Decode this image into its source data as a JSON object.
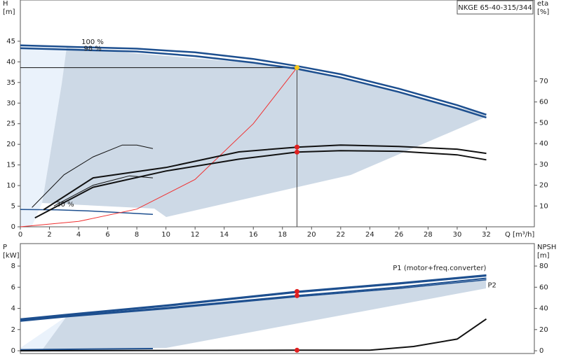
{
  "chart_data": [
    {
      "type": "line",
      "title": "NKGE 65-40-315/344",
      "y_label": [
        "H",
        "[m]"
      ],
      "y2_label": [
        "eta",
        "[%]"
      ],
      "x_label": "Q [m³/h]",
      "xlim": [
        0,
        35.3
      ],
      "xticks": [
        0,
        2,
        4,
        6,
        8,
        10,
        12,
        14,
        16,
        18,
        20,
        22,
        24,
        26,
        28,
        30,
        32
      ],
      "ylim": [
        0,
        55
      ],
      "yticks": [
        0,
        5,
        10,
        15,
        20,
        25,
        30,
        35,
        40,
        45
      ],
      "y2lim": [
        0,
        109
      ],
      "y2ticks": [
        10,
        20,
        30,
        40,
        50,
        60,
        70
      ],
      "series": [
        {
          "name": "100 %",
          "color": "#1d4f8f",
          "width": 2.5,
          "x": [
            0,
            4,
            8,
            12,
            16,
            19,
            22,
            26,
            30,
            32
          ],
          "values": [
            44,
            43.6,
            43.2,
            42.3,
            40.7,
            39,
            37,
            33.5,
            29.5,
            27.2
          ]
        },
        {
          "name": "98 %",
          "color": "#1d4f8f",
          "width": 2.5,
          "x": [
            0,
            4,
            8,
            12,
            16,
            19,
            22,
            26,
            30,
            32
          ],
          "values": [
            43.3,
            42.9,
            42.5,
            41.4,
            39.8,
            38.3,
            36.2,
            32.7,
            28.7,
            26.5
          ]
        },
        {
          "name": "30 %",
          "color": "#1d4f8f",
          "width": 1.5,
          "x": [
            0,
            2.5,
            5,
            9.1
          ],
          "values": [
            4.2,
            4.1,
            3.8,
            3
          ]
        },
        {
          "color": "#f03030",
          "width": 1,
          "x": [
            0,
            4,
            8,
            12,
            16,
            19
          ],
          "values": [
            0,
            1.3,
            4.3,
            11.5,
            25,
            38.6
          ]
        },
        {
          "color": "#111111",
          "width": 2,
          "axis": "y2",
          "x": [
            1.6,
            5,
            10,
            15,
            19,
            22,
            26,
            30,
            32
          ],
          "values": [
            8.2,
            23.5,
            28.5,
            36,
            38.3,
            39.3,
            38.6,
            37.3,
            35.3
          ]
        },
        {
          "color": "#111111",
          "width": 2,
          "axis": "y2",
          "x": [
            1,
            5,
            10,
            15,
            19,
            22,
            26,
            30,
            32
          ],
          "values": [
            4.3,
            19,
            26.8,
            32.5,
            35.9,
            36.6,
            36.3,
            34.6,
            32.2
          ]
        },
        {
          "color": "#111111",
          "width": 1,
          "axis": "y2",
          "x": [
            0.8,
            3,
            5,
            7,
            8,
            9.1
          ],
          "values": [
            9.3,
            25,
            33.6,
            39.3,
            39.3,
            37.6
          ]
        },
        {
          "color": "#111111",
          "width": 1,
          "axis": "y2",
          "x": [
            2.3,
            5,
            7.5,
            9.1
          ],
          "values": [
            10,
            20,
            24.5,
            23.5
          ]
        }
      ],
      "markers": [
        {
          "x": 19,
          "y": 38.6,
          "color": "#f5c518"
        },
        {
          "x": 19,
          "y": 38.3,
          "axis": "y2",
          "color": "#e02020"
        },
        {
          "x": 19,
          "y": 35.9,
          "axis": "y2",
          "color": "#e02020"
        }
      ],
      "duty_lines": true
    },
    {
      "type": "line",
      "y_label": [
        "P",
        "[kW]"
      ],
      "y2_label": [
        "NPSH",
        "[m]"
      ],
      "xlim": [
        0,
        35.3
      ],
      "ylim": [
        -0.26,
        10.12
      ],
      "yticks": [
        0,
        2,
        4,
        6,
        8
      ],
      "y2lim": [
        -2.6,
        101.2
      ],
      "y2ticks": [
        0,
        20,
        40,
        60,
        80
      ],
      "series": [
        {
          "name": "P1 (motor+freq.converter)",
          "color": "#1d4f8f",
          "width": 2,
          "x": [
            0,
            3,
            10,
            19,
            26,
            32
          ],
          "values": [
            3.0,
            3.4,
            4.3,
            5.6,
            6.4,
            7.15
          ]
        },
        {
          "color": "#1d4f8f",
          "width": 1.5,
          "x": [
            0,
            3,
            10,
            19,
            26,
            32
          ],
          "values": [
            2.93,
            3.33,
            4.2,
            5.5,
            6.3,
            7.05
          ]
        },
        {
          "name": "P2",
          "color": "#1d4f8f",
          "width": 2,
          "x": [
            0,
            3,
            10,
            19,
            26,
            32
          ],
          "values": [
            2.85,
            3.25,
            4.05,
            5.2,
            6.0,
            6.85
          ]
        },
        {
          "color": "#1d4f8f",
          "width": 1.5,
          "x": [
            0,
            3,
            10,
            19,
            26,
            32
          ],
          "values": [
            2.78,
            3.18,
            3.95,
            5.1,
            5.88,
            6.7
          ]
        },
        {
          "color": "#1d4f8f",
          "width": 2,
          "x": [
            0,
            9.1
          ],
          "values": [
            0.1,
            0.2
          ]
        },
        {
          "color": "#111111",
          "width": 2,
          "axis": "y2",
          "x": [
            0,
            19,
            24,
            27,
            30,
            32
          ],
          "values": [
            0,
            0.5,
            0.6,
            4,
            11,
            30
          ]
        }
      ],
      "markers": [
        {
          "x": 19,
          "y": 5.6,
          "color": "#e02020"
        },
        {
          "x": 19,
          "y": 5.2,
          "color": "#e02020"
        },
        {
          "x": 19,
          "y": 0.5,
          "axis": "y2",
          "color": "#e02020"
        }
      ]
    }
  ]
}
